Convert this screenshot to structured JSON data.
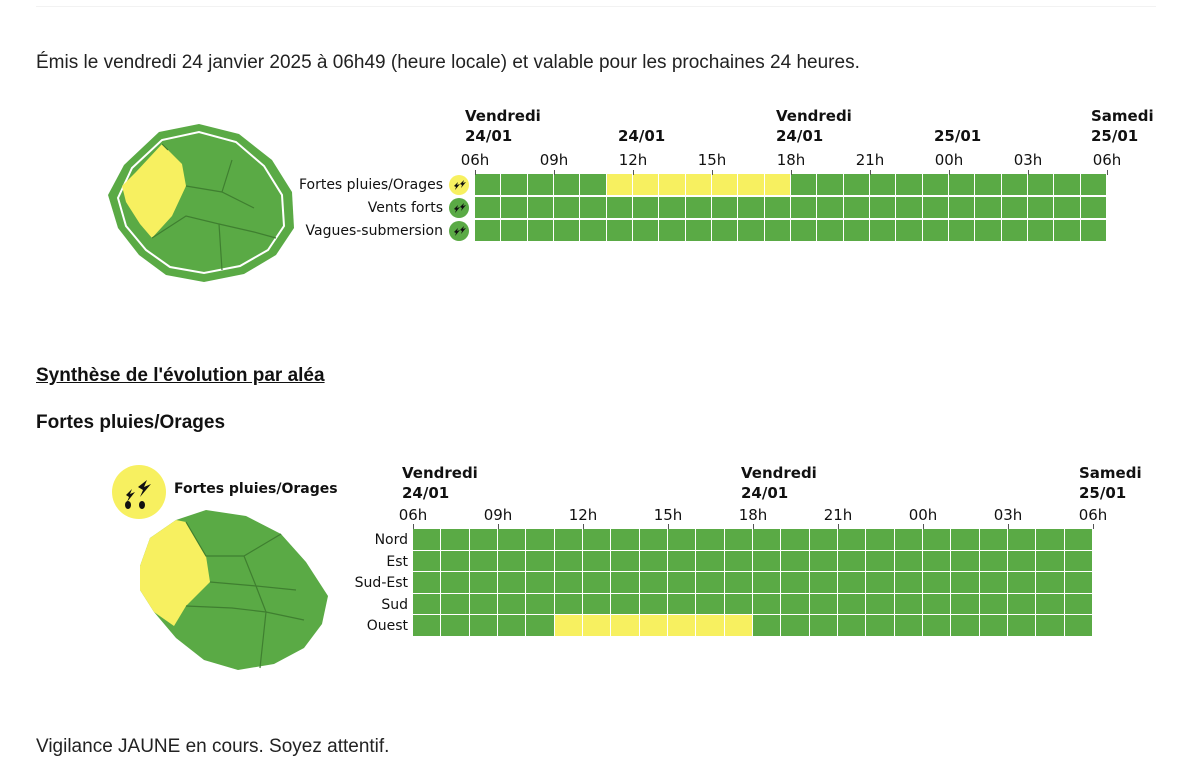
{
  "issue_text": "Émis le vendredi 24 janvier 2025 à 06h49 (heure locale) et valable pour les prochaines 24 heures.",
  "colors": {
    "green": "#5aaa45",
    "yellow": "#f7f060",
    "grid_line": "#ffffff"
  },
  "overview": {
    "day_labels": [
      {
        "line1": "Vendredi",
        "line2": "24/01"
      },
      {
        "line1": "",
        "line2": "24/01"
      },
      {
        "line1": "Vendredi",
        "line2": "24/01"
      },
      {
        "line1": "",
        "line2": "25/01"
      },
      {
        "line1": "Samedi",
        "line2": "25/01"
      }
    ],
    "ticks": [
      "06h",
      "09h",
      "12h",
      "15h",
      "18h",
      "21h",
      "00h",
      "03h",
      "06h"
    ],
    "hazards": [
      {
        "label": "Fortes pluies/Orages",
        "icon": "thunderstorm-icon",
        "yellow_from_hour": 5,
        "yellow_to_hour": 12
      },
      {
        "label": "Vents forts",
        "icon": "wind-icon",
        "yellow_from_hour": null,
        "yellow_to_hour": null
      },
      {
        "label": "Vagues-submersion",
        "icon": "wave-icon",
        "yellow_from_hour": null,
        "yellow_to_hour": null
      }
    ]
  },
  "synthesis_title": "Synthèse de l'évolution par aléa",
  "hazard_section": {
    "title": "Fortes pluies/Orages",
    "icon": "thunderstorm-icon",
    "icon_label": "Fortes pluies/Orages",
    "day_labels": [
      {
        "line1": "Vendredi",
        "line2": "24/01"
      },
      {
        "line1": "Vendredi",
        "line2": "24/01"
      },
      {
        "line1": "Samedi",
        "line2": "25/01"
      }
    ],
    "ticks": [
      "06h",
      "09h",
      "12h",
      "15h",
      "18h",
      "21h",
      "00h",
      "03h",
      "06h"
    ],
    "zones": [
      {
        "name": "Nord",
        "yellow_from_hour": null,
        "yellow_to_hour": null
      },
      {
        "name": "Est",
        "yellow_from_hour": null,
        "yellow_to_hour": null
      },
      {
        "name": "Sud-Est",
        "yellow_from_hour": null,
        "yellow_to_hour": null
      },
      {
        "name": "Sud",
        "yellow_from_hour": null,
        "yellow_to_hour": null
      },
      {
        "name": "Ouest",
        "yellow_from_hour": 5,
        "yellow_to_hour": 12
      }
    ]
  },
  "footer_text": "Vigilance JAUNE en cours. Soyez attentif."
}
